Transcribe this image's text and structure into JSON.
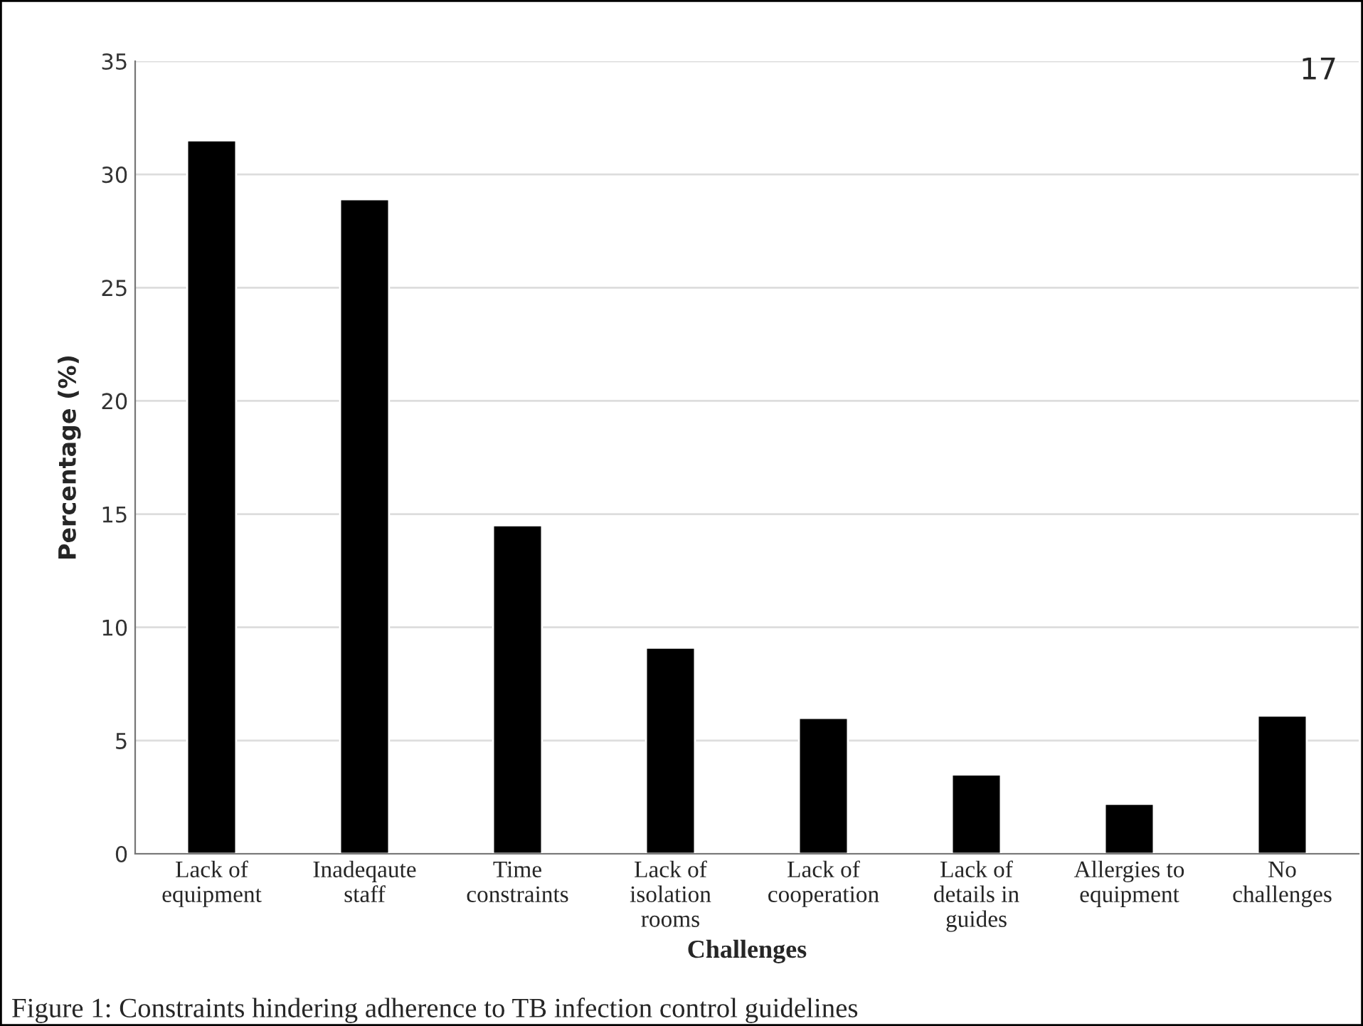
{
  "chart_data": {
    "type": "bar",
    "categories": [
      "Lack of\nequipment",
      "Inadeqaute\nstaff",
      "Time\nconstraints",
      "Lack of\nisolation\nrooms",
      "Lack of\ncooperation",
      "Lack of\ndetails in\nguides",
      "Allergies to\nequipment",
      "No\nchallenges"
    ],
    "values": [
      31.5,
      28.9,
      14.5,
      9.1,
      6.0,
      3.5,
      2.2,
      6.1
    ],
    "color": "#000000",
    "ylabel": "Percentage (%)",
    "xlabel": "Challenges",
    "ylim": [
      0,
      35
    ],
    "yticks": [
      0,
      5,
      10,
      15,
      20,
      25,
      30,
      35
    ],
    "grid": "y",
    "annotations": [
      "17",
      "Figure 1: Constraints hindering adherence to TB infection control guidelines"
    ]
  }
}
